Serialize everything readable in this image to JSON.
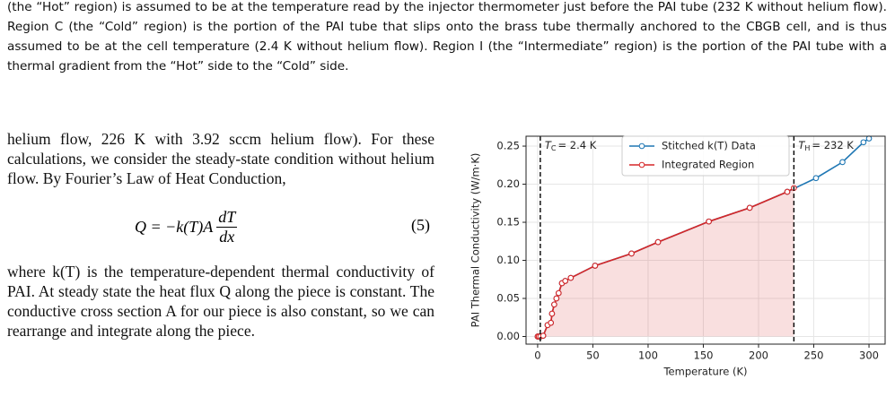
{
  "top_paragraph": "(the “Hot” region) is assumed to be at the temperature read by the injector thermometer just before the PAI tube (232 K without helium flow). Region C (the “Cold” region) is the portion of the PAI tube that slips onto the brass tube thermally anchored to the CBGB cell, and is thus assumed to be at the cell temperature (2.4 K without helium flow). Region I (the “Intermediate” region) is the portion of the PAI tube with a thermal gradient from the “Hot” side to the “Cold” side.",
  "left_column": {
    "paragraph_1": "helium flow, 226 K with 3.92 sccm helium flow). For these calculations, we consider the steady-state condition without helium flow. By Fourier’s Law of Heat Conduction,",
    "equation": {
      "lhs": "Q = −k(T)A",
      "numerator": "dT",
      "denominator": "dx",
      "number": "(5)"
    },
    "paragraph_2": "where k(T) is the temperature-dependent thermal conductivity of PAI. At steady state the heat flux Q along the piece is constant. The conductive cross section A for our piece is also constant, so we can rearrange and integrate along the piece."
  },
  "chart_data": {
    "type": "line",
    "x_label": "Temperature (K)",
    "y_label": "PAI Thermal Conductivity (W/m·K)",
    "xlim": [
      -10.5,
      314.6
    ],
    "ylim": [
      -0.01,
      0.263
    ],
    "xticks": [
      0,
      50,
      100,
      150,
      200,
      250,
      300
    ],
    "yticks": [
      {
        "value": 0,
        "label": "0.00"
      },
      {
        "value": 0.05,
        "label": "0.05"
      },
      {
        "value": 0.1,
        "label": "0.10"
      },
      {
        "value": 0.15,
        "label": "0.15"
      },
      {
        "value": 0.2,
        "label": "0.20"
      },
      {
        "value": 0.25,
        "label": "0.25"
      }
    ],
    "grid": true,
    "legend": "upper center",
    "series": [
      {
        "name": "Stitched k(T) Data",
        "color": "#1f77b4",
        "x": [
          0,
          1,
          2.4,
          5,
          9,
          12,
          13,
          15,
          17,
          19,
          22,
          25,
          30,
          52,
          85,
          109,
          155,
          192,
          226,
          252,
          276,
          295,
          300
        ],
        "values": [
          0,
          0,
          0,
          0.001,
          0.015,
          0.018,
          0.03,
          0.042,
          0.05,
          0.057,
          0.07,
          0.073,
          0.077,
          0.093,
          0.109,
          0.124,
          0.151,
          0.169,
          0.19,
          0.208,
          0.229,
          0.255,
          0.26
        ]
      },
      {
        "name": "Integrated Region",
        "color": "#d62728",
        "fill": true,
        "x": [
          0,
          1,
          2.4,
          5,
          9,
          12,
          13,
          15,
          17,
          19,
          22,
          25,
          30,
          52,
          85,
          109,
          155,
          192,
          226,
          232
        ],
        "values": [
          0,
          0,
          0,
          0.001,
          0.015,
          0.018,
          0.03,
          0.042,
          0.05,
          0.057,
          0.07,
          0.073,
          0.077,
          0.093,
          0.109,
          0.124,
          0.151,
          0.169,
          0.19,
          0.195
        ]
      }
    ],
    "vlines": [
      {
        "x": 2.4,
        "symbol": "T",
        "subscript": "C",
        "text": "= 2.4 K"
      },
      {
        "x": 232,
        "symbol": "T",
        "subscript": "H",
        "text": "= 232 K"
      }
    ]
  }
}
